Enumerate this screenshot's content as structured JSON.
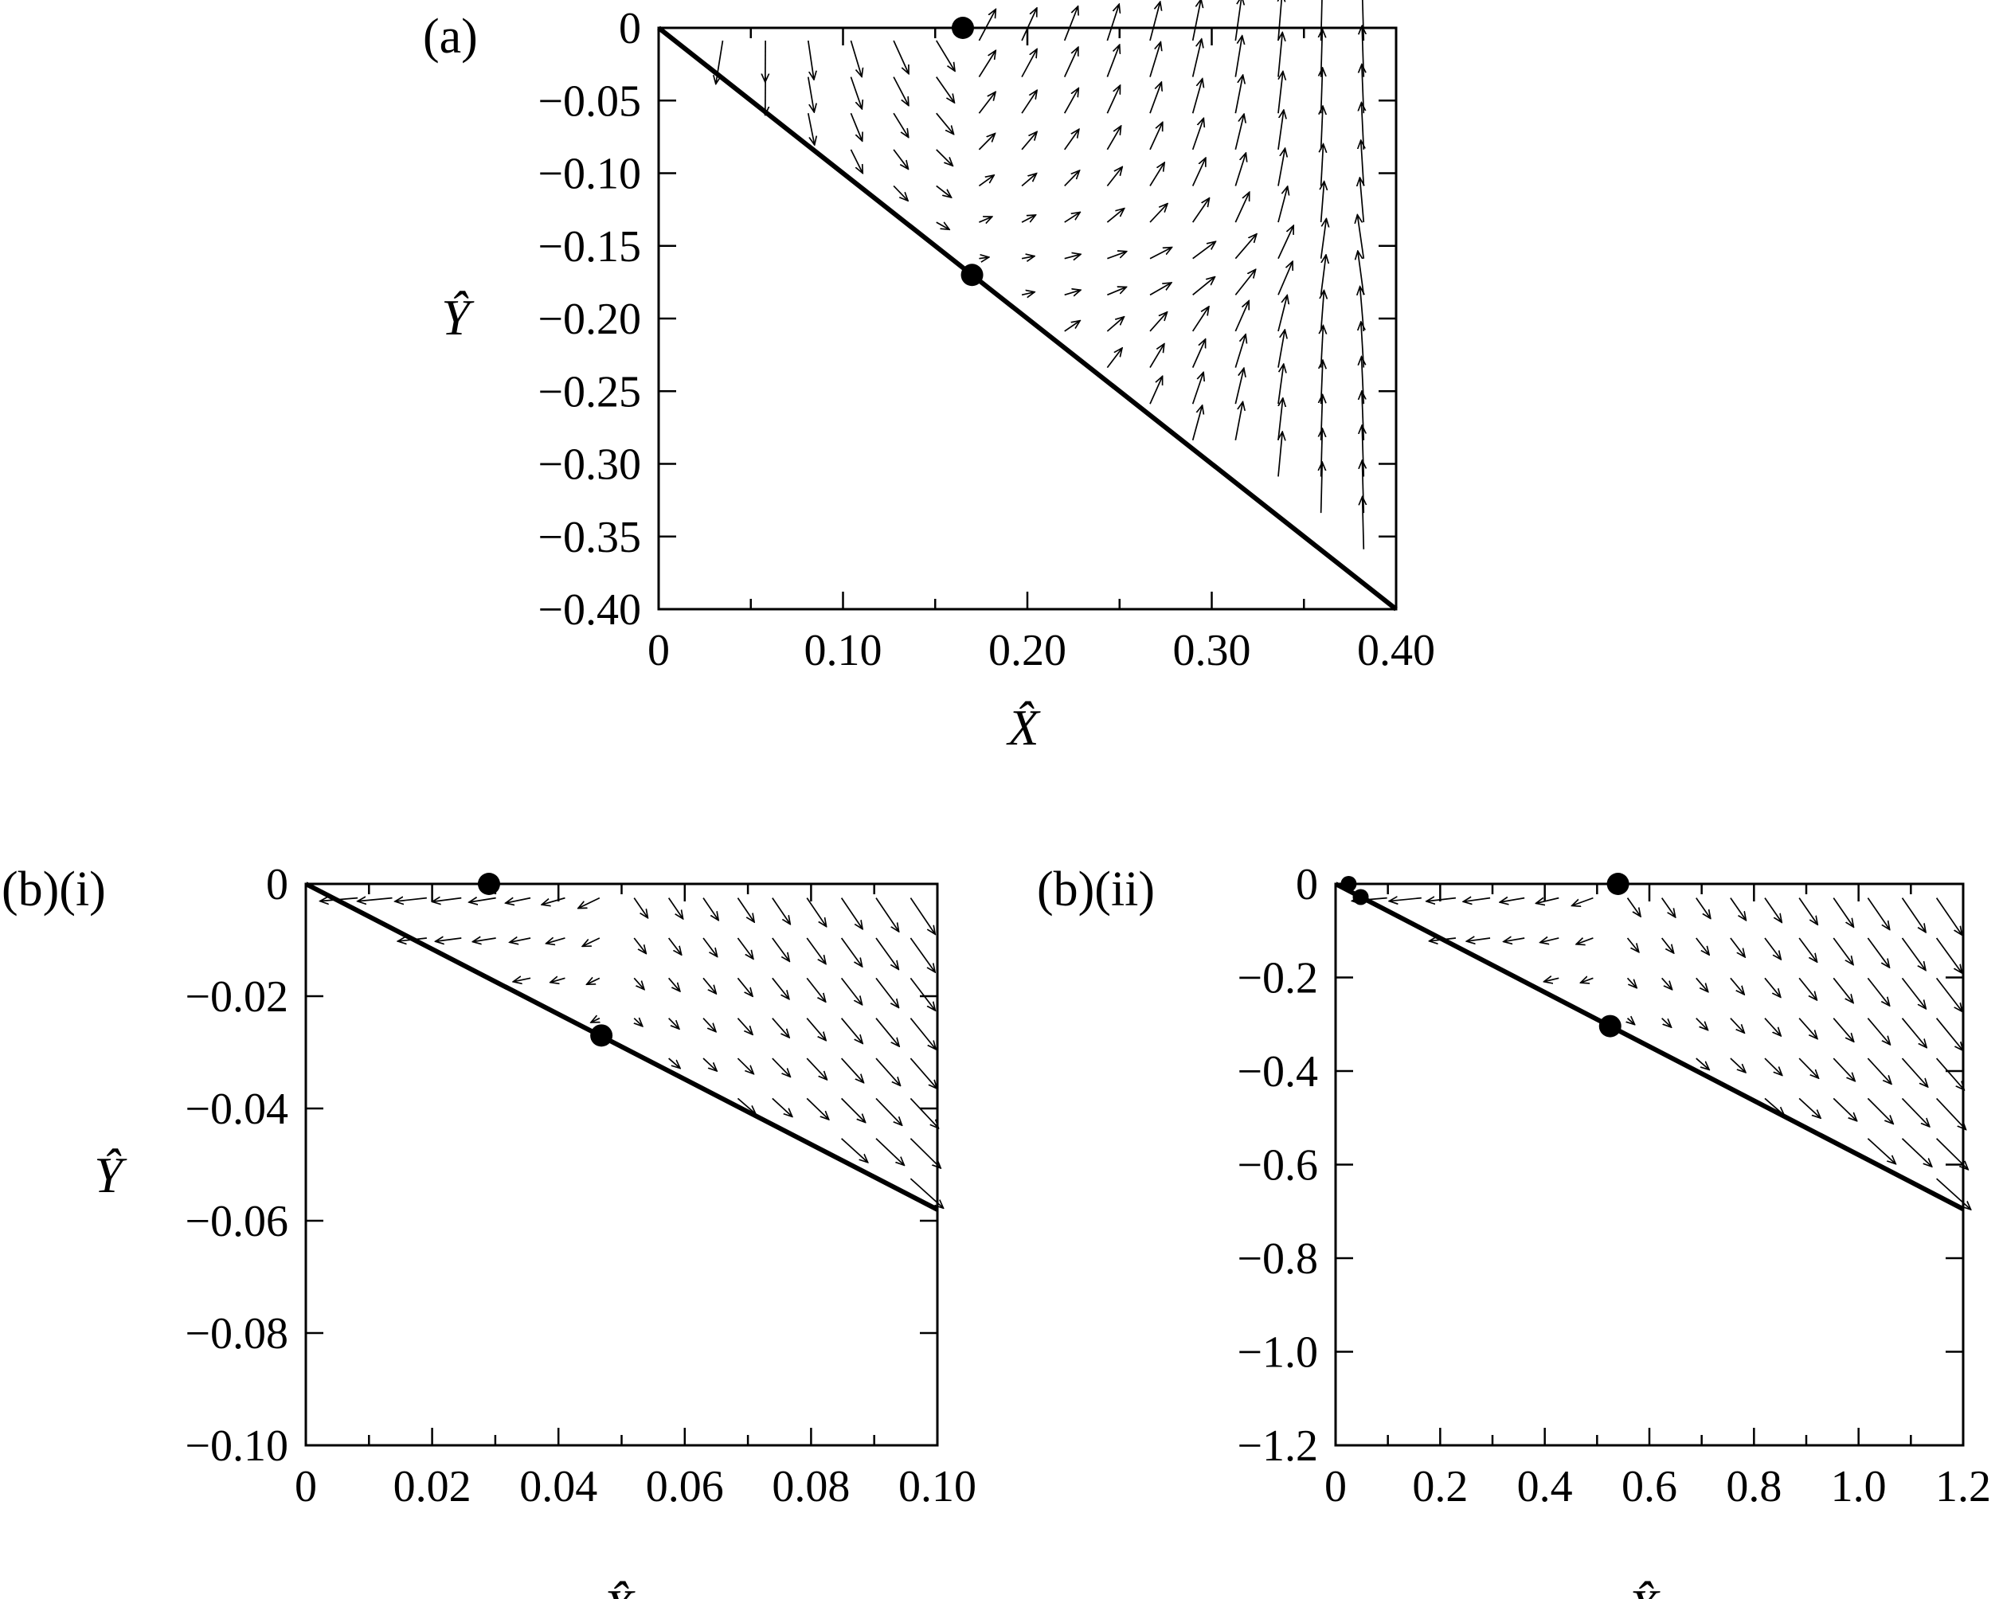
{
  "chart_data": [
    {
      "type": "quiver",
      "panel_label": "(a)",
      "xlabel": "X̂",
      "ylabel": "Ŷ",
      "xlim": [
        0,
        0.4
      ],
      "ylim": [
        -0.4,
        0
      ],
      "x_ticks": [
        "0",
        "0.10",
        "0.20",
        "0.30",
        "0.40"
      ],
      "y_ticks": [
        "0",
        "−0.05",
        "−0.10",
        "−0.15",
        "−0.20",
        "−0.25",
        "−0.30",
        "−0.35",
        "−0.40"
      ],
      "x_tick_values": [
        0,
        0.1,
        0.2,
        0.3,
        0.4
      ],
      "y_tick_values": [
        0,
        -0.05,
        -0.1,
        -0.15,
        -0.2,
        -0.25,
        -0.3,
        -0.35,
        -0.4
      ],
      "x_minor_step": 0.05,
      "boundary_line": {
        "x": [
          0,
          0.4
        ],
        "y": [
          0,
          -0.4
        ]
      },
      "points": [
        {
          "x": 0.165,
          "y": 0.0
        },
        {
          "x": 0.17,
          "y": -0.17
        }
      ],
      "saddle": {
        "x": 0.17,
        "y": -0.17
      },
      "grid_nx": 17,
      "grid_ny": 16
    },
    {
      "type": "quiver",
      "panel_label": "(b)(i)",
      "xlabel": "",
      "ylabel": "Ŷ",
      "xlim": [
        0,
        0.1
      ],
      "ylim": [
        -0.1,
        0
      ],
      "x_ticks": [
        "0",
        "0.02",
        "0.04",
        "0.06",
        "0.08",
        "0.10"
      ],
      "y_ticks": [
        "0",
        "−0.02",
        "−0.04",
        "−0.06",
        "−0.08",
        "−0.10"
      ],
      "x_tick_values": [
        0,
        0.02,
        0.04,
        0.06,
        0.08,
        0.1
      ],
      "y_tick_values": [
        0,
        -0.02,
        -0.04,
        -0.06,
        -0.08,
        -0.1
      ],
      "x_minor_step": 0.01,
      "boundary_line": {
        "x": [
          0,
          0.1
        ],
        "y": [
          0,
          -0.058
        ]
      },
      "points": [
        {
          "x": 0.029,
          "y": 0.0
        },
        {
          "x": 0.0468,
          "y": -0.027
        }
      ],
      "saddle": {
        "x": 0.0468,
        "y": -0.027
      },
      "grid_nx": 18,
      "grid_ny": 14
    },
    {
      "type": "quiver",
      "panel_label": "(b)(ii)",
      "xlabel": "X̂",
      "ylabel": "",
      "xlim": [
        0,
        1.2
      ],
      "ylim": [
        -1.2,
        0
      ],
      "x_ticks": [
        "0",
        "0.2",
        "0.4",
        "0.6",
        "0.8",
        "1.0",
        "1.2"
      ],
      "y_ticks": [
        "0",
        "−0.2",
        "−0.4",
        "−0.6",
        "−0.8",
        "−1.0",
        "−1.2"
      ],
      "x_tick_values": [
        0,
        0.2,
        0.4,
        0.6,
        0.8,
        1.0,
        1.2
      ],
      "y_tick_values": [
        0,
        -0.2,
        -0.4,
        -0.6,
        -0.8,
        -1.0,
        -1.2
      ],
      "x_minor_step": 0.1,
      "boundary_line": {
        "x": [
          0,
          1.2
        ],
        "y": [
          0,
          -0.695
        ]
      },
      "points": [
        {
          "x": 0.025,
          "y": 0.0
        },
        {
          "x": 0.048,
          "y": -0.028
        },
        {
          "x": 0.54,
          "y": 0.0
        },
        {
          "x": 0.525,
          "y": -0.304
        }
      ],
      "saddle": {
        "x": 0.525,
        "y": -0.304
      },
      "grid_nx": 18,
      "grid_ny": 14
    }
  ],
  "bottom_xlabel_partial": "X̂"
}
